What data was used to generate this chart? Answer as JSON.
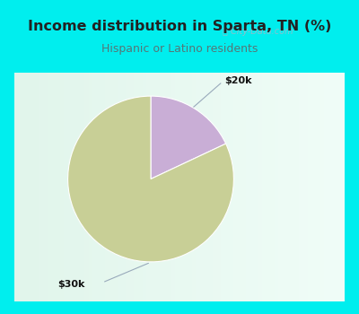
{
  "title": "Income distribution in Sparta, TN (%)",
  "subtitle": "Hispanic or Latino residents",
  "slices": [
    {
      "label": "$20k",
      "value": 18,
      "color": "#c9aed6"
    },
    {
      "label": "$30k",
      "value": 82,
      "color": "#c8cf96"
    }
  ],
  "cyan_border_color": "#00eeee",
  "title_color": "#222222",
  "subtitle_color": "#557777",
  "watermark_text": "City-Data.com",
  "watermark_color": "#a0b8c8",
  "annotation_color": "#99aabb",
  "label_color": "#111111",
  "chart_bg_topleft": [
    0.88,
    0.96,
    0.92
  ],
  "chart_bg_topright": [
    0.94,
    0.99,
    0.97
  ],
  "chart_bg_bottomleft": [
    0.82,
    0.95,
    0.88
  ],
  "chart_bg_bottomright": [
    0.9,
    0.98,
    0.94
  ]
}
